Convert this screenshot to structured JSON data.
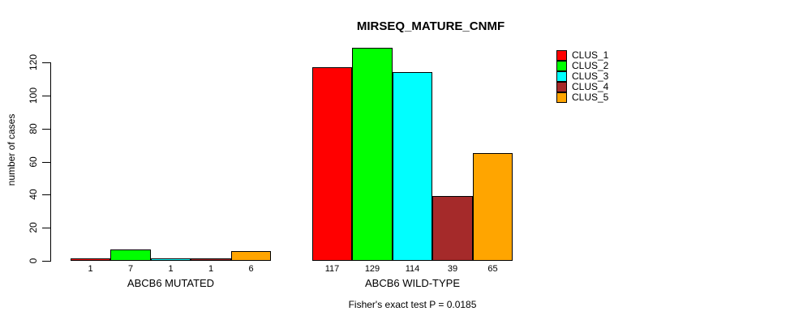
{
  "chart_data": {
    "type": "bar",
    "title": "MIRSEQ_MATURE_CNMF",
    "ylabel": "number of cases",
    "xlabel": "",
    "ylim": [
      0,
      130
    ],
    "yticks": [
      0,
      20,
      40,
      60,
      80,
      100,
      120
    ],
    "grid": false,
    "legend_position": "topright",
    "categories": [
      "ABCB6 MUTATED",
      "ABCB6 WILD-TYPE"
    ],
    "series": [
      {
        "name": "CLUS_1",
        "color": "#FF0000",
        "values": [
          1,
          117
        ]
      },
      {
        "name": "CLUS_2",
        "color": "#00FF00",
        "values": [
          7,
          129
        ]
      },
      {
        "name": "CLUS_3",
        "color": "#00FFFF",
        "values": [
          1,
          114
        ]
      },
      {
        "name": "CLUS_4",
        "color": "#A52A2A",
        "values": [
          1,
          39
        ]
      },
      {
        "name": "CLUS_5",
        "color": "#FFA500",
        "values": [
          6,
          65
        ]
      }
    ],
    "bar_value_labels": [
      [
        "1",
        "7",
        "1",
        "1",
        "6"
      ],
      [
        "117",
        "129",
        "114",
        "39",
        "65"
      ]
    ],
    "annotation": "Fisher's exact test P = 0.0185",
    "axis_color": "#000000",
    "background_color": "#FFFFFF"
  }
}
